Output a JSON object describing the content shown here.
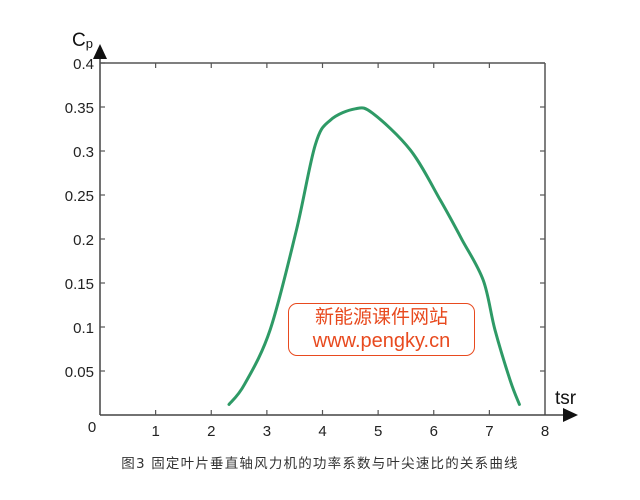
{
  "chart_data": {
    "type": "line",
    "title": "",
    "caption": "图3 固定叶片垂直轴风力机的功率系数与叶尖速比的关系曲线",
    "xlabel": "tsr",
    "ylabel": "Cp",
    "ylabel_main": "C",
    "ylabel_sub": "p",
    "xlim": [
      0,
      8
    ],
    "ylim": [
      0,
      0.4
    ],
    "grid": false,
    "legend": null,
    "x_ticks": [
      "0",
      "1",
      "2",
      "3",
      "4",
      "5",
      "6",
      "7",
      "8"
    ],
    "y_ticks": [
      "0",
      "0.05",
      "0.1",
      "0.15",
      "0.2",
      "0.25",
      "0.3",
      "0.35",
      "0.4"
    ],
    "series": [
      {
        "name": "Cp vs tsr",
        "color": "#2e9a66",
        "x": [
          2.32,
          2.6,
          3.06,
          3.53,
          3.87,
          4.14,
          4.59,
          4.9,
          5.58,
          6.12,
          6.51,
          6.89,
          7.1,
          7.37,
          7.54
        ],
        "y": [
          0.012,
          0.035,
          0.097,
          0.21,
          0.307,
          0.335,
          0.348,
          0.343,
          0.301,
          0.244,
          0.199,
          0.153,
          0.097,
          0.04,
          0.012
        ]
      }
    ]
  },
  "watermark": {
    "line1": "新能源课件网站",
    "line2": "www.pengky.cn",
    "color": "#e84a1f"
  },
  "colors": {
    "axis": "#555555",
    "curve": "#2e9a66"
  }
}
